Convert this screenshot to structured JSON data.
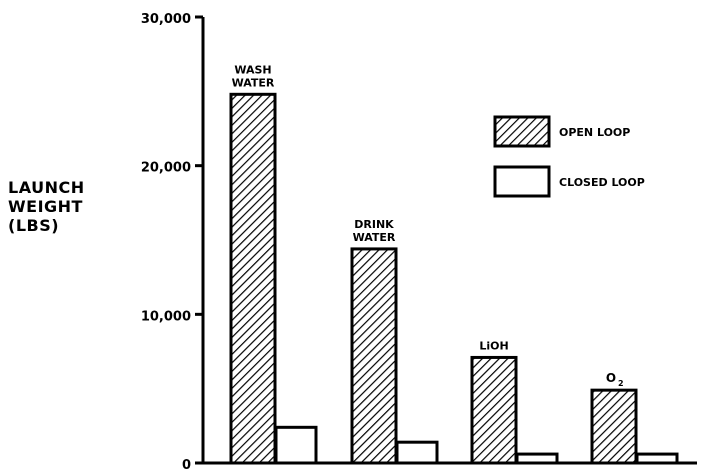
{
  "chart_data": {
    "type": "bar",
    "categories": [
      "WASH WATER",
      "DRINK WATER",
      "LiOH",
      "O2"
    ],
    "category_labels": [
      [
        "WASH",
        "WATER"
      ],
      [
        "DRINK",
        "WATER"
      ],
      [
        "LiOH"
      ],
      [
        "O",
        "2"
      ]
    ],
    "series": [
      {
        "name": "OPEN LOOP",
        "values": [
          24800,
          14400,
          7100,
          4900
        ],
        "pattern": "hatched"
      },
      {
        "name": "CLOSED LOOP",
        "values": [
          2400,
          1400,
          600,
          600
        ],
        "pattern": "white"
      }
    ],
    "ylabel": [
      "LAUNCH",
      "WEIGHT",
      "(LBS)"
    ],
    "yticks": [
      0,
      10000,
      20000,
      30000
    ],
    "ytick_labels": [
      "0",
      "10,000",
      "20,000",
      "30,000"
    ],
    "ylim": [
      0,
      30000
    ],
    "grid": false,
    "legend": "top-right"
  }
}
